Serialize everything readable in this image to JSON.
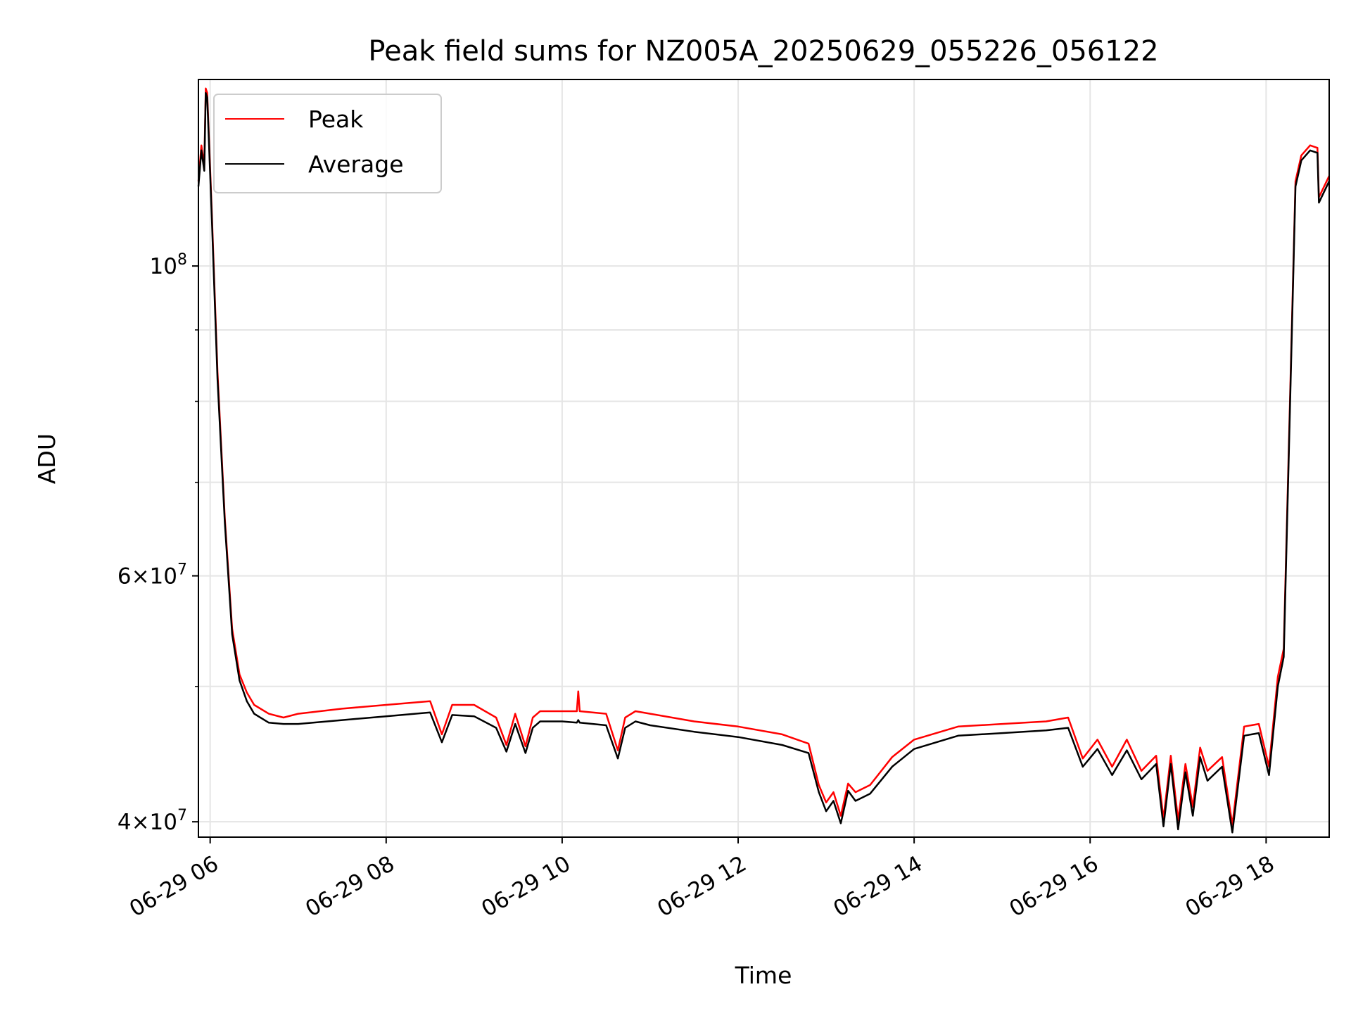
{
  "chart_data": {
    "type": "line",
    "title": "Peak field sums for NZ005A_20250629_055226_056122",
    "xlabel": "Time",
    "ylabel": "ADU",
    "x_ticks": [
      {
        "value": "2025-06-29T06:00",
        "label": "06-29 06"
      },
      {
        "value": "2025-06-29T08:00",
        "label": "06-29 08"
      },
      {
        "value": "2025-06-29T10:00",
        "label": "06-29 10"
      },
      {
        "value": "2025-06-29T12:00",
        "label": "06-29 12"
      },
      {
        "value": "2025-06-29T14:00",
        "label": "06-29 14"
      },
      {
        "value": "2025-06-29T16:00",
        "label": "06-29 16"
      },
      {
        "value": "2025-06-29T18:00",
        "label": "06-29 18"
      }
    ],
    "y_ticks": [
      {
        "value": 40000000,
        "label_base": "4×10",
        "label_exp": "7"
      },
      {
        "value": 60000000,
        "label_base": "6×10",
        "label_exp": "7"
      },
      {
        "value": 100000000,
        "label_base": "10",
        "label_exp": "8"
      }
    ],
    "y_minor_ticks": [
      50000000,
      70000000,
      80000000,
      90000000
    ],
    "y_scale": "log",
    "xlim": [
      "2025-06-29T05:52",
      "2025-06-29T18:43"
    ],
    "ylim": [
      39000000,
      136000000
    ],
    "grid": true,
    "legend_position": "upper-left",
    "colors": {
      "Peak": "#ff0000",
      "Average": "#000000"
    },
    "series": [
      {
        "name": "Peak",
        "x": [
          "2025-06-29T05:52",
          "2025-06-29T05:54",
          "2025-06-29T05:56",
          "2025-06-29T05:57",
          "2025-06-29T05:58",
          "2025-06-29T06:01",
          "2025-06-29T06:05",
          "2025-06-29T06:10",
          "2025-06-29T06:15",
          "2025-06-29T06:20",
          "2025-06-29T06:25",
          "2025-06-29T06:30",
          "2025-06-29T06:40",
          "2025-06-29T06:50",
          "2025-06-29T07:00",
          "2025-06-29T07:30",
          "2025-06-29T08:00",
          "2025-06-29T08:30",
          "2025-06-29T08:38",
          "2025-06-29T08:45",
          "2025-06-29T09:00",
          "2025-06-29T09:15",
          "2025-06-29T09:22",
          "2025-06-29T09:28",
          "2025-06-29T09:35",
          "2025-06-29T09:40",
          "2025-06-29T09:45",
          "2025-06-29T10:00",
          "2025-06-29T10:10",
          "2025-06-29T10:11",
          "2025-06-29T10:12",
          "2025-06-29T10:30",
          "2025-06-29T10:38",
          "2025-06-29T10:43",
          "2025-06-29T10:50",
          "2025-06-29T11:00",
          "2025-06-29T11:30",
          "2025-06-29T12:00",
          "2025-06-29T12:30",
          "2025-06-29T12:48",
          "2025-06-29T12:55",
          "2025-06-29T13:00",
          "2025-06-29T13:05",
          "2025-06-29T13:10",
          "2025-06-29T13:15",
          "2025-06-29T13:20",
          "2025-06-29T13:30",
          "2025-06-29T13:45",
          "2025-06-29T14:00",
          "2025-06-29T14:30",
          "2025-06-29T15:00",
          "2025-06-29T15:30",
          "2025-06-29T15:45",
          "2025-06-29T15:55",
          "2025-06-29T16:05",
          "2025-06-29T16:15",
          "2025-06-29T16:25",
          "2025-06-29T16:35",
          "2025-06-29T16:45",
          "2025-06-29T16:50",
          "2025-06-29T16:55",
          "2025-06-29T17:00",
          "2025-06-29T17:05",
          "2025-06-29T17:10",
          "2025-06-29T17:15",
          "2025-06-29T17:20",
          "2025-06-29T17:30",
          "2025-06-29T17:37",
          "2025-06-29T17:45",
          "2025-06-29T17:55",
          "2025-06-29T18:02",
          "2025-06-29T18:08",
          "2025-06-29T18:12",
          "2025-06-29T18:16",
          "2025-06-29T18:20",
          "2025-06-29T18:24",
          "2025-06-29T18:30",
          "2025-06-29T18:35",
          "2025-06-29T18:36",
          "2025-06-29T18:43"
        ],
        "y": [
          115000000,
          122000000,
          118000000,
          134000000,
          133000000,
          110000000,
          84000000,
          66000000,
          55000000,
          51000000,
          49500000,
          48500000,
          47800000,
          47500000,
          47800000,
          48200000,
          48500000,
          48800000,
          46200000,
          48500000,
          48500000,
          47500000,
          45400000,
          47800000,
          45300000,
          47500000,
          48000000,
          48000000,
          48000000,
          49600000,
          48000000,
          47800000,
          45000000,
          47500000,
          48000000,
          47800000,
          47200000,
          46800000,
          46200000,
          45500000,
          42500000,
          41300000,
          42000000,
          40400000,
          42600000,
          42000000,
          42500000,
          44500000,
          45800000,
          46800000,
          47000000,
          47200000,
          47500000,
          44400000,
          45800000,
          43800000,
          45800000,
          43500000,
          44600000,
          40200000,
          44600000,
          40100000,
          44000000,
          41000000,
          45200000,
          43500000,
          44500000,
          39800000,
          46800000,
          47000000,
          43800000,
          50800000,
          53200000,
          78000000,
          115000000,
          120000000,
          122000000,
          121500000,
          112000000,
          116000000
        ]
      },
      {
        "name": "Average",
        "x": [
          "2025-06-29T05:52",
          "2025-06-29T05:54",
          "2025-06-29T05:56",
          "2025-06-29T05:57",
          "2025-06-29T05:58",
          "2025-06-29T06:01",
          "2025-06-29T06:05",
          "2025-06-29T06:10",
          "2025-06-29T06:15",
          "2025-06-29T06:20",
          "2025-06-29T06:25",
          "2025-06-29T06:30",
          "2025-06-29T06:40",
          "2025-06-29T06:50",
          "2025-06-29T07:00",
          "2025-06-29T07:30",
          "2025-06-29T08:00",
          "2025-06-29T08:30",
          "2025-06-29T08:38",
          "2025-06-29T08:45",
          "2025-06-29T09:00",
          "2025-06-29T09:15",
          "2025-06-29T09:22",
          "2025-06-29T09:28",
          "2025-06-29T09:35",
          "2025-06-29T09:40",
          "2025-06-29T09:45",
          "2025-06-29T10:00",
          "2025-06-29T10:10",
          "2025-06-29T10:11",
          "2025-06-29T10:12",
          "2025-06-29T10:30",
          "2025-06-29T10:38",
          "2025-06-29T10:43",
          "2025-06-29T10:50",
          "2025-06-29T11:00",
          "2025-06-29T11:30",
          "2025-06-29T12:00",
          "2025-06-29T12:30",
          "2025-06-29T12:48",
          "2025-06-29T12:55",
          "2025-06-29T13:00",
          "2025-06-29T13:05",
          "2025-06-29T13:10",
          "2025-06-29T13:15",
          "2025-06-29T13:20",
          "2025-06-29T13:30",
          "2025-06-29T13:45",
          "2025-06-29T14:00",
          "2025-06-29T14:30",
          "2025-06-29T15:00",
          "2025-06-29T15:30",
          "2025-06-29T15:45",
          "2025-06-29T15:55",
          "2025-06-29T16:05",
          "2025-06-29T16:15",
          "2025-06-29T16:25",
          "2025-06-29T16:35",
          "2025-06-29T16:45",
          "2025-06-29T16:50",
          "2025-06-29T16:55",
          "2025-06-29T17:00",
          "2025-06-29T17:05",
          "2025-06-29T17:10",
          "2025-06-29T17:15",
          "2025-06-29T17:20",
          "2025-06-29T17:30",
          "2025-06-29T17:37",
          "2025-06-29T17:45",
          "2025-06-29T17:55",
          "2025-06-29T18:02",
          "2025-06-29T18:08",
          "2025-06-29T18:12",
          "2025-06-29T18:16",
          "2025-06-29T18:20",
          "2025-06-29T18:24",
          "2025-06-29T18:30",
          "2025-06-29T18:35",
          "2025-06-29T18:36",
          "2025-06-29T18:43"
        ],
        "y": [
          114000000,
          121000000,
          117000000,
          133000000,
          132000000,
          109000000,
          83000000,
          65500000,
          54500000,
          50500000,
          48800000,
          47800000,
          47100000,
          47000000,
          47000000,
          47300000,
          47600000,
          47900000,
          45600000,
          47700000,
          47600000,
          46700000,
          44900000,
          47000000,
          44800000,
          46700000,
          47200000,
          47200000,
          47100000,
          47300000,
          47100000,
          46900000,
          44400000,
          46700000,
          47200000,
          46900000,
          46400000,
          46000000,
          45400000,
          44800000,
          42000000,
          40700000,
          41400000,
          39900000,
          42100000,
          41400000,
          41900000,
          43800000,
          45100000,
          46100000,
          46300000,
          46500000,
          46700000,
          43800000,
          45100000,
          43200000,
          45000000,
          42900000,
          44000000,
          39700000,
          44000000,
          39500000,
          43400000,
          40400000,
          44500000,
          42800000,
          43800000,
          39300000,
          46100000,
          46300000,
          43200000,
          50000000,
          52500000,
          77000000,
          114000000,
          119000000,
          121000000,
          120500000,
          111000000,
          115000000
        ]
      }
    ]
  }
}
